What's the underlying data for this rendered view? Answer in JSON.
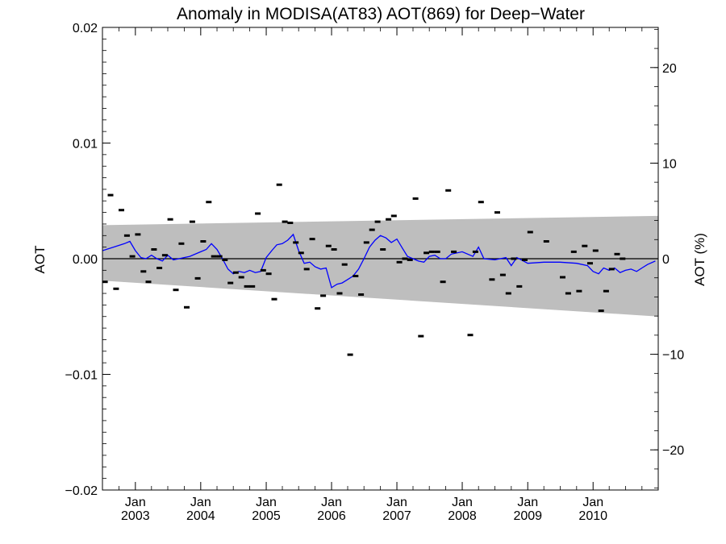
{
  "chart_data": {
    "type": "scatter",
    "title": "Anomaly in MODISA(AT83) AOT(869) for Deep−Water",
    "ylabel_left": "AOT",
    "ylabel_right": "AOT (%)",
    "xlabel": "",
    "x_range": [
      "2002-07-01",
      "2010-12-31"
    ],
    "ylim": [
      -0.02,
      0.02
    ],
    "ylim_right_pct": [
      -24.2,
      24.2
    ],
    "x_ticks": [
      {
        "date": "2003-01-01",
        "month": "Jan",
        "year": "2003"
      },
      {
        "date": "2004-01-01",
        "month": "Jan",
        "year": "2004"
      },
      {
        "date": "2005-01-01",
        "month": "Jan",
        "year": "2005"
      },
      {
        "date": "2006-01-01",
        "month": "Jan",
        "year": "2006"
      },
      {
        "date": "2007-01-01",
        "month": "Jan",
        "year": "2007"
      },
      {
        "date": "2008-01-01",
        "month": "Jan",
        "year": "2008"
      },
      {
        "date": "2009-01-01",
        "month": "Jan",
        "year": "2009"
      },
      {
        "date": "2010-01-01",
        "month": "Jan",
        "year": "2010"
      }
    ],
    "y_ticks_left": [
      {
        "value": 0.02,
        "label": "0.02"
      },
      {
        "value": 0.01,
        "label": "0.01"
      },
      {
        "value": 0.0,
        "label": "0.00"
      },
      {
        "value": -0.01,
        "label": "−0.01"
      },
      {
        "value": -0.02,
        "label": "−0.02"
      }
    ],
    "y_ticks_right": [
      {
        "value": 20,
        "label": "20"
      },
      {
        "value": 10,
        "label": "10"
      },
      {
        "value": 0,
        "label": "0"
      },
      {
        "value": -10,
        "label": "−10"
      },
      {
        "value": -20,
        "label": "−20"
      }
    ],
    "zero_line": 0.0,
    "band": {
      "color": "#bebebe",
      "start": {
        "date": "2002-07-01",
        "upper": 0.0029,
        "lower": -0.0019
      },
      "end": {
        "date": "2010-12-31",
        "upper": 0.0037,
        "lower": -0.005
      }
    },
    "points_color": "#000000",
    "points": [
      [
        "2002-07-15",
        -0.002
      ],
      [
        "2002-08-15",
        0.0055
      ],
      [
        "2002-09-15",
        -0.0026
      ],
      [
        "2002-10-15",
        0.0042
      ],
      [
        "2002-11-15",
        0.002
      ],
      [
        "2002-12-15",
        0.0002
      ],
      [
        "2003-01-15",
        0.0021
      ],
      [
        "2003-02-15",
        -0.0011
      ],
      [
        "2003-03-15",
        -0.002
      ],
      [
        "2003-04-15",
        0.0008
      ],
      [
        "2003-05-15",
        -0.0008
      ],
      [
        "2003-06-15",
        0.0003
      ],
      [
        "2003-07-15",
        0.0034
      ],
      [
        "2003-08-15",
        -0.0027
      ],
      [
        "2003-09-15",
        0.0013
      ],
      [
        "2003-10-15",
        -0.0042
      ],
      [
        "2003-11-15",
        0.0032
      ],
      [
        "2003-12-15",
        -0.0017
      ],
      [
        "2004-01-15",
        0.0015
      ],
      [
        "2004-02-15",
        0.0049
      ],
      [
        "2004-03-15",
        0.0002
      ],
      [
        "2004-04-15",
        0.0002
      ],
      [
        "2004-05-15",
        -0.0001
      ],
      [
        "2004-06-15",
        -0.0021
      ],
      [
        "2004-07-15",
        -0.0012
      ],
      [
        "2004-08-15",
        -0.0016
      ],
      [
        "2004-09-15",
        -0.0024
      ],
      [
        "2004-10-15",
        -0.0024
      ],
      [
        "2004-11-15",
        0.0039
      ],
      [
        "2004-12-15",
        -0.001
      ],
      [
        "2005-01-15",
        -0.0013
      ],
      [
        "2005-02-15",
        -0.0035
      ],
      [
        "2005-03-15",
        0.0064
      ],
      [
        "2005-04-15",
        0.0032
      ],
      [
        "2005-05-15",
        0.0031
      ],
      [
        "2005-06-15",
        0.0014
      ],
      [
        "2005-07-15",
        0.0005
      ],
      [
        "2005-08-15",
        -0.0009
      ],
      [
        "2005-09-15",
        0.0017
      ],
      [
        "2005-10-15",
        -0.0043
      ],
      [
        "2005-11-15",
        -0.0032
      ],
      [
        "2005-12-15",
        0.0011
      ],
      [
        "2006-01-15",
        0.0008
      ],
      [
        "2006-02-15",
        -0.003
      ],
      [
        "2006-03-15",
        -0.0005
      ],
      [
        "2006-04-15",
        -0.0083
      ],
      [
        "2006-05-15",
        -0.0015
      ],
      [
        "2006-06-15",
        -0.0031
      ],
      [
        "2006-07-15",
        0.0014
      ],
      [
        "2006-08-15",
        0.0025
      ],
      [
        "2006-09-15",
        0.0032
      ],
      [
        "2006-10-15",
        0.0008
      ],
      [
        "2006-11-15",
        0.0034
      ],
      [
        "2006-12-15",
        0.0037
      ],
      [
        "2007-01-15",
        -0.0003
      ],
      [
        "2007-02-15",
        0.0
      ],
      [
        "2007-03-15",
        -0.0001
      ],
      [
        "2007-04-15",
        0.0052
      ],
      [
        "2007-05-15",
        -0.0067
      ],
      [
        "2007-06-15",
        0.0005
      ],
      [
        "2007-07-15",
        0.0006
      ],
      [
        "2007-08-15",
        0.0006
      ],
      [
        "2007-09-15",
        -0.002
      ],
      [
        "2007-10-15",
        0.0059
      ],
      [
        "2007-11-15",
        0.0006
      ],
      [
        "2008-02-15",
        -0.0066
      ],
      [
        "2008-03-15",
        0.0006
      ],
      [
        "2008-04-15",
        0.0049
      ],
      [
        "2008-06-15",
        -0.0018
      ],
      [
        "2008-07-15",
        0.004
      ],
      [
        "2008-08-15",
        -0.0014
      ],
      [
        "2008-09-15",
        -0.003
      ],
      [
        "2008-10-15",
        0.0
      ],
      [
        "2008-11-15",
        -0.0024
      ],
      [
        "2008-12-15",
        -0.0001
      ],
      [
        "2009-01-15",
        0.0023
      ],
      [
        "2009-04-15",
        0.0015
      ],
      [
        "2009-07-15",
        -0.0016
      ],
      [
        "2009-08-15",
        -0.003
      ],
      [
        "2009-09-15",
        0.0006
      ],
      [
        "2009-10-15",
        -0.0028
      ],
      [
        "2009-11-15",
        0.0011
      ],
      [
        "2009-12-15",
        -0.0004
      ],
      [
        "2010-01-15",
        0.0007
      ],
      [
        "2010-02-15",
        -0.0045
      ],
      [
        "2010-03-15",
        -0.0028
      ],
      [
        "2010-04-15",
        -0.0009
      ],
      [
        "2010-05-15",
        0.0004
      ],
      [
        "2010-06-15",
        0.0
      ]
    ],
    "smooth_color": "#0000ff",
    "smooth_line": [
      [
        "2002-07-01",
        0.0007
      ],
      [
        "2002-09-01",
        0.001
      ],
      [
        "2002-11-01",
        0.0013
      ],
      [
        "2002-12-01",
        0.0015
      ],
      [
        "2003-01-01",
        0.0007
      ],
      [
        "2003-02-01",
        0.0001
      ],
      [
        "2003-03-01",
        0.0
      ],
      [
        "2003-04-01",
        0.0003
      ],
      [
        "2003-05-01",
        0.0
      ],
      [
        "2003-06-01",
        -0.0002
      ],
      [
        "2003-07-01",
        0.0003
      ],
      [
        "2003-08-01",
        -0.0001
      ],
      [
        "2003-09-01",
        0.0
      ],
      [
        "2003-11-01",
        0.0002
      ],
      [
        "2004-01-01",
        0.0006
      ],
      [
        "2004-02-01",
        0.0008
      ],
      [
        "2004-03-01",
        0.0013
      ],
      [
        "2004-04-01",
        0.0008
      ],
      [
        "2004-05-01",
        0.0
      ],
      [
        "2004-06-01",
        -0.0009
      ],
      [
        "2004-07-01",
        -0.0013
      ],
      [
        "2004-08-01",
        -0.0011
      ],
      [
        "2004-09-01",
        -0.0012
      ],
      [
        "2004-10-01",
        -0.001
      ],
      [
        "2004-11-01",
        -0.0012
      ],
      [
        "2004-12-01",
        -0.0011
      ],
      [
        "2005-01-01",
        0.0001
      ],
      [
        "2005-02-01",
        0.0007
      ],
      [
        "2005-03-01",
        0.0012
      ],
      [
        "2005-04-01",
        0.0013
      ],
      [
        "2005-05-01",
        0.0016
      ],
      [
        "2005-06-01",
        0.0021
      ],
      [
        "2005-07-01",
        0.0007
      ],
      [
        "2005-08-01",
        -0.0004
      ],
      [
        "2005-09-01",
        -0.0003
      ],
      [
        "2005-10-01",
        -0.0007
      ],
      [
        "2005-11-01",
        -0.0009
      ],
      [
        "2005-12-01",
        -0.0008
      ],
      [
        "2006-01-01",
        -0.0025
      ],
      [
        "2006-02-01",
        -0.0022
      ],
      [
        "2006-03-01",
        -0.0021
      ],
      [
        "2006-04-01",
        -0.0018
      ],
      [
        "2006-05-01",
        -0.0015
      ],
      [
        "2006-06-01",
        -0.0009
      ],
      [
        "2006-07-01",
        0.0
      ],
      [
        "2006-08-01",
        0.001
      ],
      [
        "2006-09-01",
        0.0016
      ],
      [
        "2006-10-01",
        0.002
      ],
      [
        "2006-11-01",
        0.0018
      ],
      [
        "2006-12-01",
        0.0014
      ],
      [
        "2007-01-01",
        0.0017
      ],
      [
        "2007-02-01",
        0.0009
      ],
      [
        "2007-03-01",
        0.0002
      ],
      [
        "2007-04-01",
        0.0
      ],
      [
        "2007-05-01",
        -0.0002
      ],
      [
        "2007-06-01",
        -0.0003
      ],
      [
        "2007-07-01",
        0.0002
      ],
      [
        "2007-08-01",
        0.0003
      ],
      [
        "2007-09-01",
        0.0
      ],
      [
        "2007-10-01",
        0.0
      ],
      [
        "2007-11-01",
        0.0004
      ],
      [
        "2008-01-01",
        0.0006
      ],
      [
        "2008-03-01",
        0.0002
      ],
      [
        "2008-04-01",
        0.001
      ],
      [
        "2008-05-01",
        0.0
      ],
      [
        "2008-07-01",
        -0.0001
      ],
      [
        "2008-09-01",
        0.0001
      ],
      [
        "2008-10-01",
        -0.0006
      ],
      [
        "2008-11-01",
        0.0001
      ],
      [
        "2009-01-01",
        -0.0004
      ],
      [
        "2009-04-01",
        -0.0003
      ],
      [
        "2009-07-01",
        -0.0003
      ],
      [
        "2009-10-01",
        -0.0004
      ],
      [
        "2009-12-01",
        -0.0006
      ],
      [
        "2010-01-01",
        -0.0011
      ],
      [
        "2010-02-01",
        -0.0013
      ],
      [
        "2010-03-01",
        -0.0008
      ],
      [
        "2010-04-01",
        -0.001
      ],
      [
        "2010-05-01",
        -0.0008
      ],
      [
        "2010-06-01",
        -0.0012
      ],
      [
        "2010-07-01",
        -0.001
      ],
      [
        "2010-08-01",
        -0.0009
      ],
      [
        "2010-09-01",
        -0.0011
      ],
      [
        "2010-10-01",
        -0.0008
      ],
      [
        "2010-11-01",
        -0.0005
      ],
      [
        "2010-12-15",
        -0.0002
      ]
    ]
  }
}
